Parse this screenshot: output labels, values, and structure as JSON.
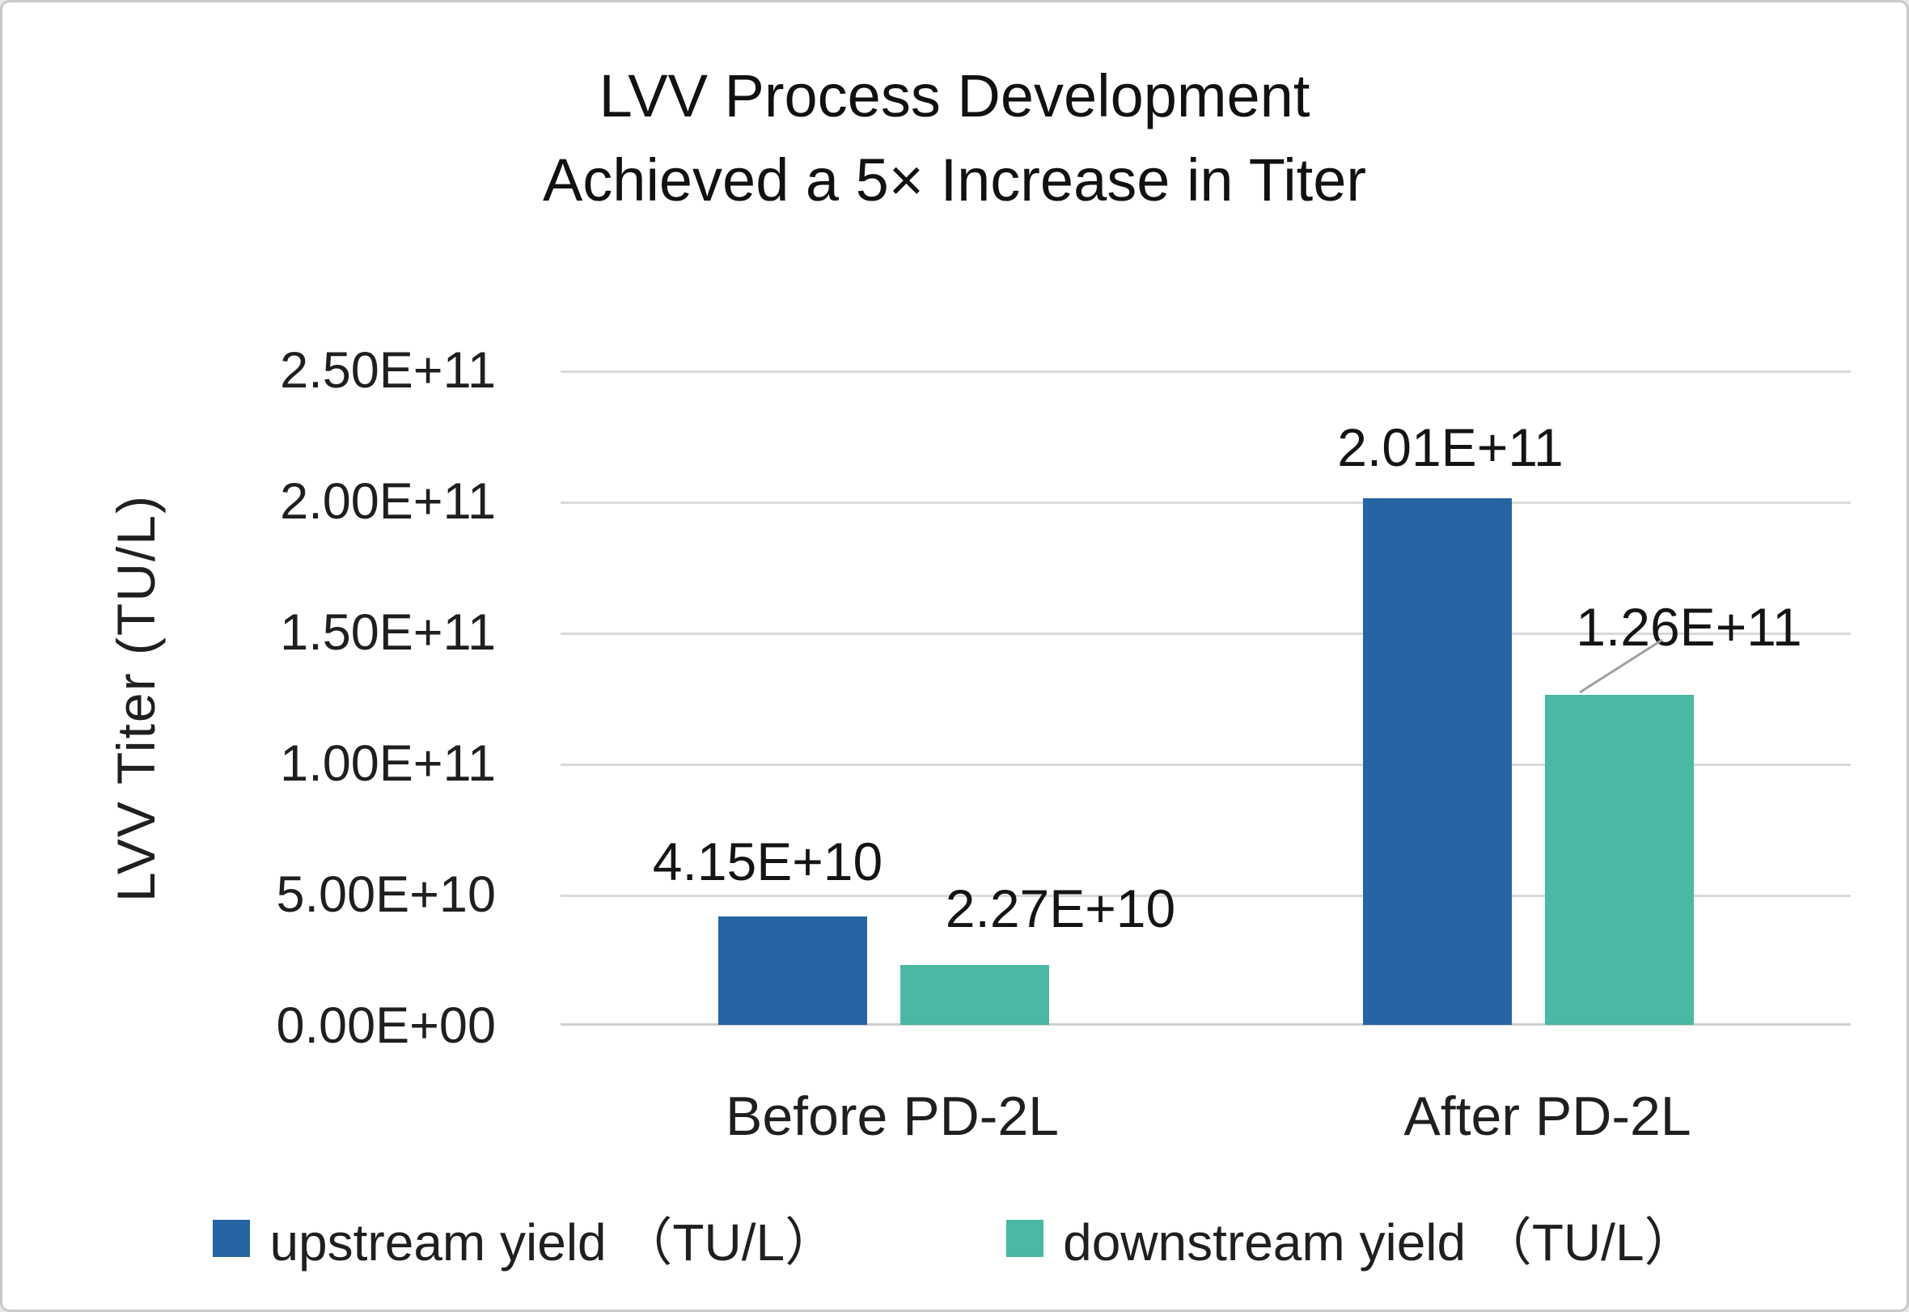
{
  "chart_data": {
    "type": "bar",
    "title_lines": [
      "LVV Process Development",
      "Achieved a 5× Increase in Titer"
    ],
    "categories": [
      "Before PD-2L",
      "After PD-2L"
    ],
    "series": [
      {
        "name": "upstream yield （TU/L）",
        "color": "#2664A4",
        "values": [
          41500000000.0,
          201000000000.0
        ]
      },
      {
        "name": "downstream yield （TU/L）",
        "color": "#4AB8A2",
        "values": [
          22700000000.0,
          126000000000.0
        ]
      }
    ],
    "data_labels": {
      "before_upstream": "4.15E+10",
      "before_downstream": "2.27E+10",
      "after_upstream": "2.01E+11",
      "after_downstream": "1.26E+11"
    },
    "ylabel": "LVV Titer (TU/L)",
    "yticks": [
      "2.50E+11",
      "2.00E+11",
      "1.50E+11",
      "1.00E+11",
      "5.00E+10",
      "0.00E+00"
    ],
    "ylim": [
      0,
      250000000000.0
    ],
    "grid": "horizontal-only",
    "legend_position": "bottom",
    "colors": {
      "gridline": "#d9d9d9",
      "leader_line": "#a0a0a0",
      "text": "#1f1f1f"
    }
  }
}
